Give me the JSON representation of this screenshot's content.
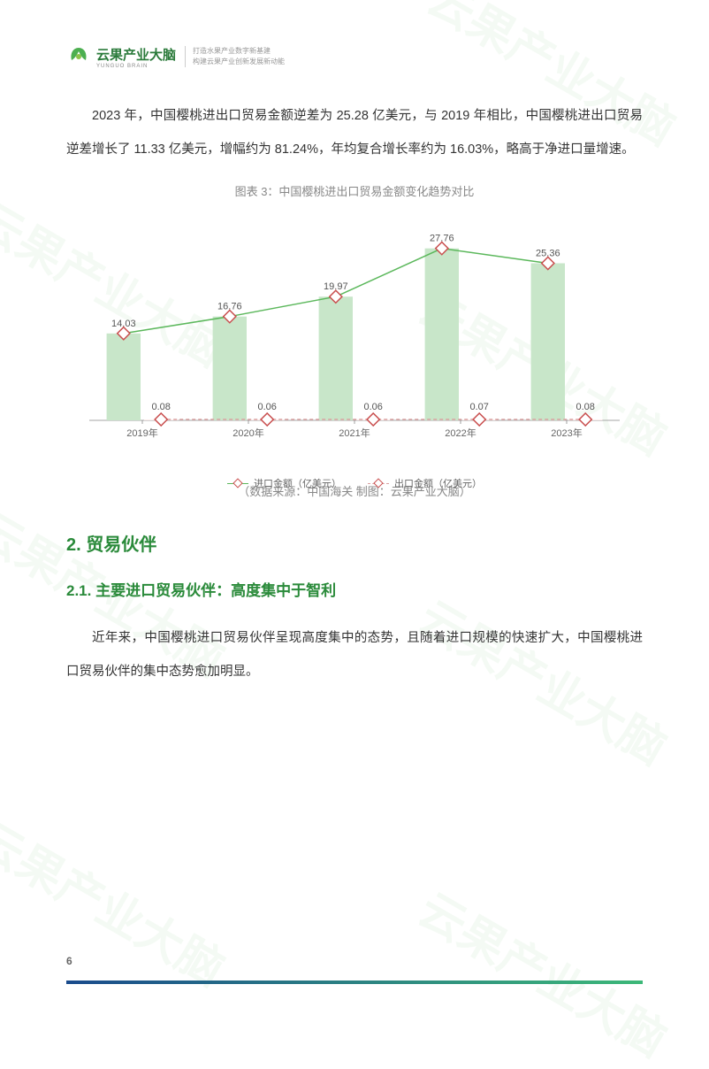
{
  "header": {
    "brand_name": "云果产业大脑",
    "brand_sub": "YUNGUO BRAIN",
    "tagline_line1": "打造水果产业数字新基建",
    "tagline_line2": "构建云果产业创新发展新动能"
  },
  "paragraph1": "2023 年，中国樱桃进出口贸易金额逆差为 25.28 亿美元，与 2019 年相比，中国樱桃进出口贸易逆差增长了 11.33 亿美元，增幅约为 81.24%，年均复合增长率约为 16.03%，略高于净进口量增速。",
  "chart": {
    "title": "图表 3：中国樱桃进出口贸易金额变化趋势对比",
    "type": "bar-line-combo",
    "categories": [
      "2019年",
      "2020年",
      "2021年",
      "2022年",
      "2023年"
    ],
    "series_import": {
      "label": "进口金额（亿美元）",
      "values": [
        14.03,
        16.76,
        19.97,
        27.76,
        25.36
      ],
      "bar_color": "#c8e6c9",
      "line_color": "#5cb85c",
      "marker_border": "#c94f4f",
      "marker_fill": "#ffffff"
    },
    "series_export": {
      "label": "出口金额（亿美元）",
      "values": [
        0.08,
        0.06,
        0.06,
        0.07,
        0.08
      ],
      "bar_color": "#fdecea",
      "line_color": "#d9a0a0",
      "line_dash": true,
      "marker_border": "#c94f4f",
      "marker_fill": "#ffffff"
    },
    "ylim": [
      0,
      30
    ],
    "plot_background": "#ffffff",
    "axis_color": "#888888",
    "label_color": "#666666",
    "label_fontsize": 11,
    "value_label_fontsize": 11,
    "bar_group_gap": 0.45
  },
  "chart_source": "（数据来源：中国海关    制图：云果产业大脑）",
  "section_heading": "2. 贸易伙伴",
  "subsection_heading": "2.1. 主要进口贸易伙伴：高度集中于智利",
  "paragraph2": "近年来，中国樱桃进口贸易伙伴呈现高度集中的态势，且随着进口规模的快速扩大，中国樱桃进口贸易伙伴的集中态势愈加明显。",
  "page_number": "6",
  "footer_line": {
    "start_color": "#1a4b8c",
    "end_color": "#3cb878"
  },
  "watermark_text": "云果产业大脑"
}
